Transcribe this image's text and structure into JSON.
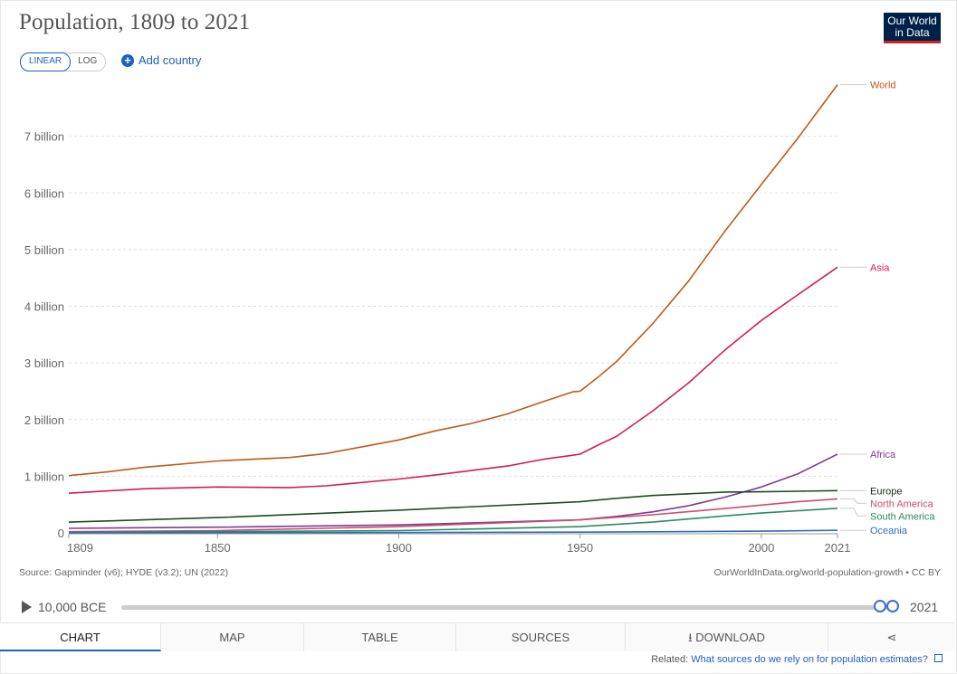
{
  "title": "Population, 1809 to 2021",
  "logo": {
    "line1": "Our World",
    "line2": "in Data"
  },
  "scale": {
    "linear": "LINEAR",
    "log": "LOG"
  },
  "add_country": "Add country",
  "source": "Source: Gapminder (v6); HYDE (v3.2); UN (2022)",
  "license": "OurWorldInData.org/world-population-growth • CC BY",
  "timeline": {
    "start": "10,000 BCE",
    "end": "2021"
  },
  "tabs": [
    {
      "label": "CHART"
    },
    {
      "label": "MAP"
    },
    {
      "label": "TABLE"
    },
    {
      "label": "SOURCES"
    },
    {
      "label": "DOWNLOAD"
    }
  ],
  "related": {
    "prefix": "Related:",
    "link": "What sources do we rely on for population estimates?"
  },
  "chart_data": {
    "type": "line",
    "title": "Population, 1809 to 2021",
    "xlabel": "",
    "ylabel": "",
    "xlim": [
      1809,
      2021
    ],
    "ylim": [
      0,
      8000000000
    ],
    "x_ticks": [
      {
        "value": 1809,
        "label": "1809"
      },
      {
        "value": 1850,
        "label": "1850"
      },
      {
        "value": 1900,
        "label": "1900"
      },
      {
        "value": 1950,
        "label": "1950"
      },
      {
        "value": 2000,
        "label": "2000"
      },
      {
        "value": 2021,
        "label": "2021"
      }
    ],
    "y_ticks": [
      {
        "value": 0,
        "label": "0"
      },
      {
        "value": 1000000000,
        "label": "1 billion"
      },
      {
        "value": 2000000000,
        "label": "2 billion"
      },
      {
        "value": 3000000000,
        "label": "3 billion"
      },
      {
        "value": 4000000000,
        "label": "4 billion"
      },
      {
        "value": 5000000000,
        "label": "5 billion"
      },
      {
        "value": 6000000000,
        "label": "6 billion"
      },
      {
        "value": 7000000000,
        "label": "7 billion"
      }
    ],
    "grid": true,
    "legend": "right, labels at line ends",
    "series": [
      {
        "name": "World",
        "color": "#c05917",
        "x": [
          1809,
          1820,
          1830,
          1850,
          1870,
          1880,
          1900,
          1910,
          1920,
          1930,
          1940,
          1948,
          1950,
          1955,
          1960,
          1970,
          1980,
          1990,
          2000,
          2010,
          2021
        ],
        "y": [
          1010000000,
          1080000000,
          1160000000,
          1270000000,
          1330000000,
          1400000000,
          1640000000,
          1800000000,
          1930000000,
          2100000000,
          2320000000,
          2490000000,
          2500000000,
          2750000000,
          3020000000,
          3690000000,
          4450000000,
          5330000000,
          6150000000,
          6960000000,
          7910000000
        ]
      },
      {
        "name": "Asia",
        "color": "#d01b5e",
        "x": [
          1809,
          1830,
          1850,
          1870,
          1880,
          1900,
          1910,
          1920,
          1930,
          1940,
          1948,
          1950,
          1955,
          1960,
          1970,
          1980,
          1990,
          2000,
          2010,
          2021
        ],
        "y": [
          700000000,
          780000000,
          810000000,
          800000000,
          830000000,
          950000000,
          1020000000,
          1100000000,
          1180000000,
          1300000000,
          1370000000,
          1390000000,
          1550000000,
          1700000000,
          2150000000,
          2650000000,
          3230000000,
          3750000000,
          4200000000,
          4690000000
        ]
      },
      {
        "name": "Africa",
        "color": "#7d3c98",
        "x": [
          1809,
          1850,
          1900,
          1950,
          1960,
          1970,
          1980,
          1990,
          2000,
          2010,
          2021
        ],
        "y": [
          80000000,
          100000000,
          140000000,
          230000000,
          290000000,
          370000000,
          480000000,
          630000000,
          810000000,
          1040000000,
          1390000000
        ]
      },
      {
        "name": "Europe",
        "color": "#1c4d1c",
        "x": [
          1809,
          1850,
          1900,
          1950,
          1960,
          1970,
          1980,
          1990,
          2000,
          2010,
          2021
        ],
        "y": [
          190000000,
          270000000,
          400000000,
          550000000,
          610000000,
          660000000,
          690000000,
          720000000,
          725000000,
          735000000,
          745000000
        ]
      },
      {
        "name": "North America",
        "color": "#cc4c6b",
        "x": [
          1809,
          1850,
          1900,
          1950,
          1970,
          1990,
          2000,
          2010,
          2021
        ],
        "y": [
          20000000,
          40000000,
          110000000,
          230000000,
          320000000,
          430000000,
          490000000,
          550000000,
          600000000
        ]
      },
      {
        "name": "South America",
        "color": "#2a8b61",
        "x": [
          1809,
          1850,
          1900,
          1950,
          1970,
          1990,
          2000,
          2010,
          2021
        ],
        "y": [
          10000000,
          20000000,
          40000000,
          110000000,
          190000000,
          300000000,
          350000000,
          390000000,
          435000000
        ]
      },
      {
        "name": "Oceania",
        "color": "#2e6fb5",
        "x": [
          1809,
          1850,
          1900,
          1950,
          1970,
          1990,
          2000,
          2010,
          2021
        ],
        "y": [
          2000000,
          3000000,
          6000000,
          13000000,
          19000000,
          27000000,
          31000000,
          37000000,
          44000000
        ]
      }
    ]
  }
}
